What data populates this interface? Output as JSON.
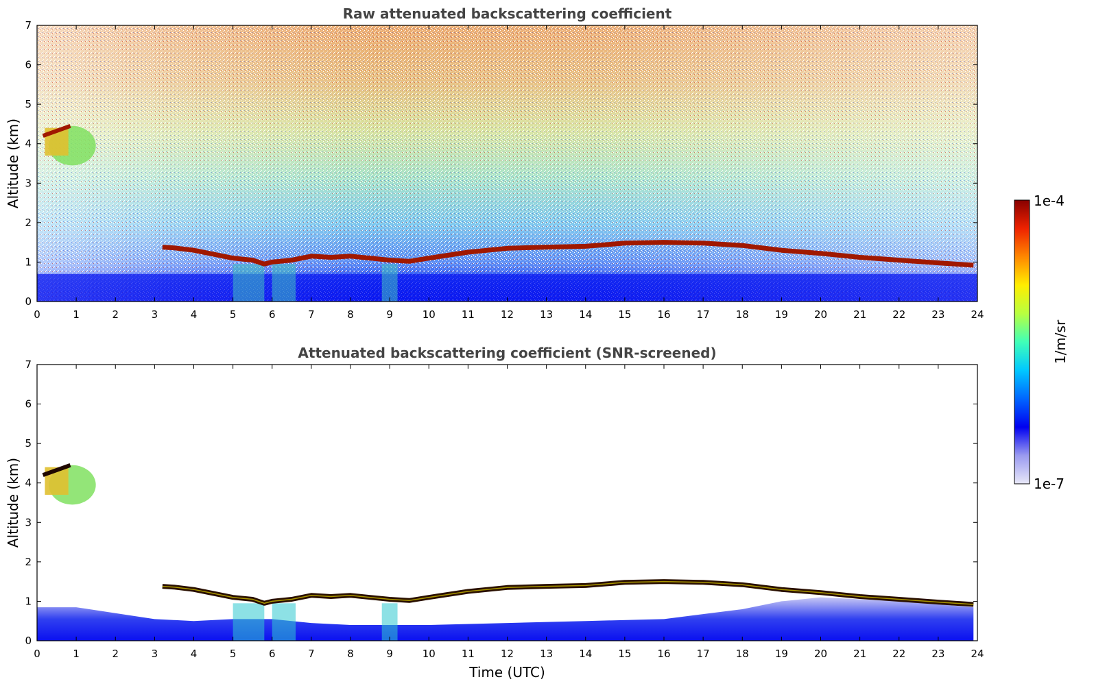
{
  "chart_data": [
    {
      "type": "heatmap",
      "title": "Raw attenuated backscattering coefficient",
      "xlabel": "",
      "ylabel": "Altitude (km)",
      "xlim": [
        0,
        24
      ],
      "ylim": [
        0,
        7
      ],
      "x_ticks": [
        "0",
        "1",
        "2",
        "3",
        "4",
        "5",
        "6",
        "7",
        "8",
        "9",
        "10",
        "11",
        "12",
        "13",
        "14",
        "15",
        "16",
        "17",
        "18",
        "19",
        "20",
        "21",
        "22",
        "23",
        "24"
      ],
      "y_ticks": [
        "0",
        "1",
        "2",
        "3",
        "4",
        "5",
        "6",
        "7"
      ],
      "screened": false,
      "layer_top_km": {
        "x": [
          3.2,
          3.5,
          4.0,
          4.5,
          5.0,
          5.5,
          5.8,
          6.0,
          6.5,
          7.0,
          7.5,
          8.0,
          8.5,
          9.0,
          9.5,
          10,
          11,
          12,
          13,
          14,
          15,
          16,
          17,
          18,
          19,
          20,
          21,
          22,
          23,
          23.9
        ],
        "y": [
          1.38,
          1.36,
          1.3,
          1.2,
          1.1,
          1.05,
          0.95,
          1.0,
          1.05,
          1.15,
          1.12,
          1.15,
          1.1,
          1.05,
          1.02,
          1.1,
          1.25,
          1.35,
          1.38,
          1.4,
          1.48,
          1.5,
          1.48,
          1.42,
          1.3,
          1.22,
          1.12,
          1.05,
          0.98,
          0.92
        ]
      },
      "cloud_km": {
        "x": [
          0.2,
          0.8
        ],
        "y": [
          3.7,
          4.4
        ]
      }
    },
    {
      "type": "heatmap",
      "title": "Attenuated backscattering coefficient (SNR-screened)",
      "xlabel": "Time (UTC)",
      "ylabel": "Altitude (km)",
      "xlim": [
        0,
        24
      ],
      "ylim": [
        0,
        7
      ],
      "x_ticks": [
        "0",
        "1",
        "2",
        "3",
        "4",
        "5",
        "6",
        "7",
        "8",
        "9",
        "10",
        "11",
        "12",
        "13",
        "14",
        "15",
        "16",
        "17",
        "18",
        "19",
        "20",
        "21",
        "22",
        "23",
        "24"
      ],
      "y_ticks": [
        "0",
        "1",
        "2",
        "3",
        "4",
        "5",
        "6",
        "7"
      ],
      "screened": true,
      "layer_top_km": {
        "x": [
          3.2,
          3.5,
          4.0,
          4.5,
          5.0,
          5.5,
          5.8,
          6.0,
          6.5,
          7.0,
          7.5,
          8.0,
          8.5,
          9.0,
          9.5,
          10,
          11,
          12,
          13,
          14,
          15,
          16,
          17,
          18,
          19,
          20,
          21,
          22,
          23,
          23.9
        ],
        "y": [
          1.38,
          1.36,
          1.3,
          1.2,
          1.1,
          1.05,
          0.95,
          1.0,
          1.05,
          1.15,
          1.12,
          1.15,
          1.1,
          1.05,
          1.02,
          1.1,
          1.25,
          1.35,
          1.38,
          1.4,
          1.48,
          1.5,
          1.48,
          1.42,
          1.3,
          1.22,
          1.12,
          1.05,
          0.98,
          0.92
        ]
      },
      "cloud_km": {
        "x": [
          0.2,
          0.8
        ],
        "y": [
          3.7,
          4.4
        ]
      }
    }
  ],
  "colorbar": {
    "max_label": "1e-4",
    "min_label": "1e-7",
    "unit_label": "1/m/sr",
    "colors": [
      "#e8e8f8",
      "#9a9af0",
      "#0000f0",
      "#0066ff",
      "#00c8ff",
      "#40ffb8",
      "#b8ff40",
      "#ffee00",
      "#ff8800",
      "#ee2200",
      "#880000"
    ]
  }
}
